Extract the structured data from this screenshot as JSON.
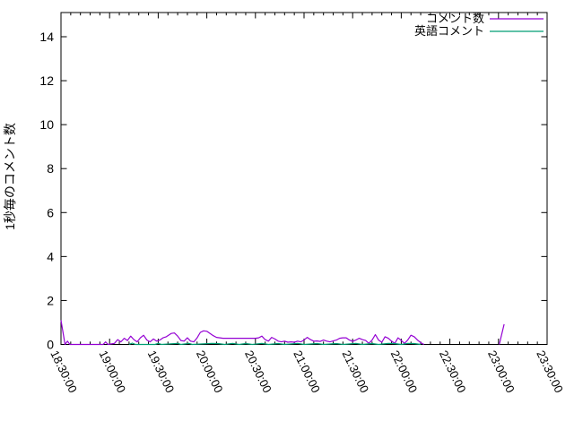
{
  "colors": {
    "series1": "#9400d3",
    "series2": "#009e73",
    "axis": "#000000",
    "background": "#ffffff"
  },
  "legend": {
    "entries": [
      {
        "label": "コメント数",
        "color": "#9400d3"
      },
      {
        "label": "英語コメント",
        "color": "#009e73"
      }
    ]
  },
  "chart_data": {
    "type": "line",
    "title": "",
    "xlabel": "",
    "ylabel": "1秒毎のコメント数",
    "grid": false,
    "legend_position": "top-right-inside",
    "ylim": [
      0,
      15.1
    ],
    "yticks": [
      0,
      2,
      4,
      6,
      8,
      10,
      12,
      14
    ],
    "x_axis": {
      "unit": "minutes after 18:30:00",
      "range_minutes": [
        0,
        300
      ],
      "major_tick_every_minutes": 30,
      "minor_ticks_per_major": 5,
      "tick_labels": [
        "18:30:00",
        "19:00:00",
        "19:30:00",
        "20:00:00",
        "20:30:00",
        "21:00:00",
        "21:30:00",
        "22:00:00",
        "22:30:00",
        "23:00:00",
        "23:30:00"
      ],
      "tick_labels_rotated": true
    },
    "series": [
      {
        "name": "コメント数",
        "color": "#9400d3",
        "segments": [
          [
            [
              0,
              1.1
            ],
            [
              2.5,
              0
            ],
            [
              4,
              0.15
            ],
            [
              5.5,
              0
            ],
            [
              26,
              0
            ],
            [
              27.5,
              0.12
            ],
            [
              29,
              0
            ],
            [
              33,
              0.05
            ],
            [
              35,
              0.22
            ],
            [
              37,
              0.12
            ],
            [
              39,
              0.28
            ],
            [
              41,
              0.18
            ],
            [
              43,
              0.38
            ],
            [
              45,
              0.22
            ],
            [
              47,
              0.12
            ],
            [
              49,
              0.3
            ],
            [
              51,
              0.42
            ],
            [
              53,
              0.2
            ],
            [
              55,
              0.12
            ],
            [
              57,
              0.25
            ],
            [
              59,
              0.15
            ],
            [
              61,
              0.2
            ],
            [
              63,
              0.3
            ],
            [
              65,
              0.35
            ],
            [
              68,
              0.5
            ],
            [
              70,
              0.52
            ],
            [
              72,
              0.38
            ],
            [
              74,
              0.18
            ],
            [
              76,
              0.15
            ],
            [
              78,
              0.3
            ],
            [
              80,
              0.15
            ],
            [
              82,
              0.12
            ],
            [
              84,
              0.3
            ],
            [
              86,
              0.55
            ],
            [
              88,
              0.62
            ],
            [
              90,
              0.6
            ],
            [
              92,
              0.5
            ],
            [
              94,
              0.4
            ],
            [
              96,
              0.32
            ],
            [
              98,
              0.3
            ],
            [
              100,
              0.28
            ],
            [
              104,
              0.28
            ],
            [
              108,
              0.28
            ],
            [
              112,
              0.28
            ],
            [
              116,
              0.28
            ],
            [
              120,
              0.28
            ],
            [
              122,
              0.3
            ],
            [
              124,
              0.38
            ],
            [
              126,
              0.22
            ],
            [
              128,
              0.15
            ],
            [
              130,
              0.32
            ],
            [
              132,
              0.25
            ],
            [
              134,
              0.15
            ],
            [
              136,
              0.12
            ],
            [
              138,
              0.15
            ],
            [
              140,
              0.1
            ],
            [
              142,
              0.12
            ],
            [
              144,
              0.1
            ],
            [
              146,
              0.15
            ],
            [
              148,
              0.12
            ],
            [
              150,
              0.2
            ],
            [
              152,
              0.32
            ],
            [
              154,
              0.22
            ],
            [
              156,
              0.15
            ],
            [
              158,
              0.16
            ],
            [
              160,
              0.14
            ],
            [
              162,
              0.2
            ],
            [
              164,
              0.15
            ],
            [
              166,
              0.12
            ],
            [
              168,
              0.16
            ],
            [
              170,
              0.2
            ],
            [
              172,
              0.28
            ],
            [
              174,
              0.3
            ],
            [
              176,
              0.3
            ],
            [
              178,
              0.2
            ],
            [
              180,
              0.14
            ],
            [
              182,
              0.2
            ],
            [
              184,
              0.28
            ],
            [
              186,
              0.22
            ],
            [
              188,
              0.18
            ],
            [
              190,
              0.05
            ],
            [
              192,
              0.2
            ],
            [
              194,
              0.45
            ],
            [
              196,
              0.2
            ],
            [
              198,
              0.1
            ],
            [
              200,
              0.35
            ],
            [
              202,
              0.28
            ],
            [
              204,
              0.15
            ],
            [
              206,
              0.05
            ],
            [
              208,
              0.3
            ],
            [
              210,
              0.18
            ],
            [
              212,
              0.05
            ],
            [
              214,
              0.2
            ],
            [
              216,
              0.42
            ],
            [
              218,
              0.35
            ],
            [
              220,
              0.2
            ],
            [
              222,
              0.08
            ],
            [
              224,
              0
            ]
          ],
          [
            [
              270.5,
              0
            ],
            [
              273.5,
              0.92
            ]
          ]
        ]
      },
      {
        "name": "英語コメント",
        "color": "#009e73",
        "segments": [
          [
            [
              42,
              0
            ],
            [
              44,
              0.06
            ],
            [
              46,
              0
            ],
            [
              58,
              0
            ],
            [
              60,
              0.05
            ],
            [
              62,
              0
            ],
            [
              72,
              0.05
            ],
            [
              74,
              0
            ],
            [
              79,
              0.05
            ],
            [
              81,
              0
            ],
            [
              93,
              0.05
            ],
            [
              97,
              0.04
            ],
            [
              101,
              0
            ],
            [
              106,
              0.05
            ],
            [
              110,
              0
            ],
            [
              114,
              0.04
            ],
            [
              118,
              0
            ],
            [
              124,
              0.05
            ],
            [
              128,
              0
            ],
            [
              134,
              0.04
            ],
            [
              138,
              0
            ],
            [
              146,
              0.05
            ],
            [
              150,
              0
            ],
            [
              158,
              0.04
            ],
            [
              162,
              0
            ],
            [
              170,
              0.04
            ],
            [
              174,
              0
            ],
            [
              182,
              0.05
            ],
            [
              186,
              0
            ],
            [
              192,
              0.04
            ],
            [
              196,
              0
            ],
            [
              202,
              0.05
            ],
            [
              206,
              0.04
            ],
            [
              210,
              0
            ],
            [
              214,
              0.05
            ],
            [
              218,
              0.04
            ],
            [
              222,
              0
            ]
          ]
        ]
      }
    ]
  }
}
